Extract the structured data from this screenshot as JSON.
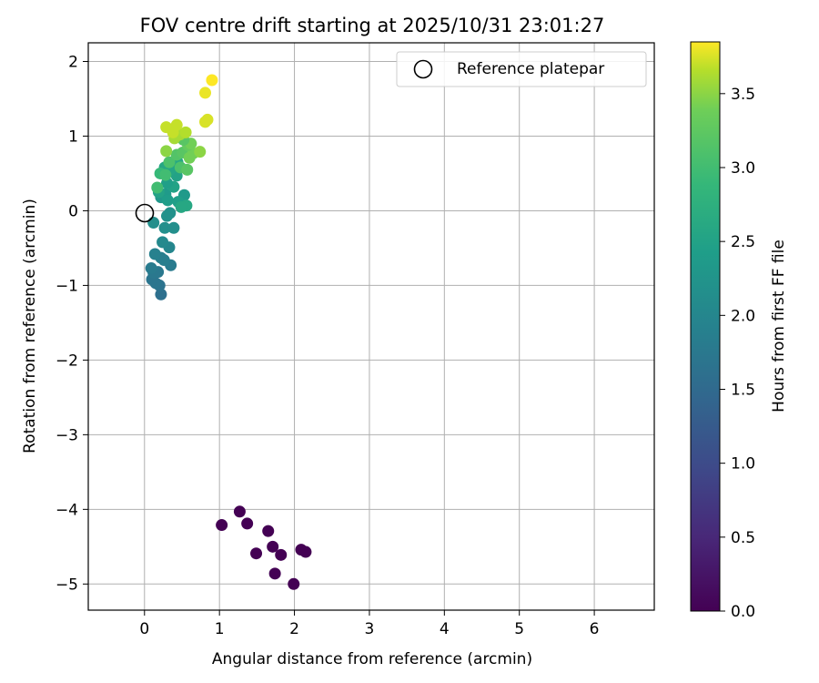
{
  "chart_data": {
    "type": "scatter",
    "title": "FOV centre drift starting at 2025/10/31 23:01:27",
    "xlabel": "Angular distance from reference (arcmin)",
    "ylabel": "Rotation from reference (arcmin)",
    "xlim": [
      -0.75,
      6.8
    ],
    "ylim": [
      -5.35,
      2.25
    ],
    "x_ticks": [
      0,
      1,
      2,
      3,
      4,
      5,
      6
    ],
    "y_ticks": [
      2,
      1,
      0,
      -1,
      -2,
      -3,
      -4,
      -5
    ],
    "grid": true,
    "legend": {
      "location": "top-right",
      "entries": [
        "Reference platepar"
      ]
    },
    "reference_point": {
      "x": 0,
      "y": 0
    },
    "colorbar": {
      "label": "Hours from first FF file",
      "range": [
        0,
        3.85
      ],
      "ticks": [
        0.0,
        0.5,
        1.0,
        1.5,
        2.0,
        2.5,
        3.0,
        3.5
      ],
      "colormap": "viridis"
    },
    "series": [
      {
        "color_by": "hours",
        "points": [
          {
            "x": 1.03,
            "y": -4.21,
            "h": 0.0
          },
          {
            "x": 1.27,
            "y": -4.03,
            "h": 0.0
          },
          {
            "x": 1.37,
            "y": -4.19,
            "h": 0.0
          },
          {
            "x": 1.49,
            "y": -4.59,
            "h": 0.0
          },
          {
            "x": 1.65,
            "y": -4.29,
            "h": 0.0
          },
          {
            "x": 1.71,
            "y": -4.5,
            "h": 0.0
          },
          {
            "x": 1.74,
            "y": -4.86,
            "h": 0.0
          },
          {
            "x": 1.82,
            "y": -4.61,
            "h": 0.0
          },
          {
            "x": 1.99,
            "y": -5.0,
            "h": 0.0
          },
          {
            "x": 2.09,
            "y": -4.54,
            "h": 0.0
          },
          {
            "x": 2.15,
            "y": -4.57,
            "h": 0.0
          },
          {
            "x": 0.22,
            "y": -1.12,
            "h": 1.6
          },
          {
            "x": 0.2,
            "y": -1.0,
            "h": 1.65
          },
          {
            "x": 0.15,
            "y": -0.97,
            "h": 1.7
          },
          {
            "x": 0.1,
            "y": -0.92,
            "h": 1.7
          },
          {
            "x": 0.12,
            "y": -0.83,
            "h": 1.75
          },
          {
            "x": 0.18,
            "y": -0.82,
            "h": 1.75
          },
          {
            "x": 0.09,
            "y": -0.77,
            "h": 1.8
          },
          {
            "x": 0.35,
            "y": -0.73,
            "h": 1.8
          },
          {
            "x": 0.26,
            "y": -0.66,
            "h": 1.85
          },
          {
            "x": 0.22,
            "y": -0.63,
            "h": 1.85
          },
          {
            "x": 0.14,
            "y": -0.58,
            "h": 1.9
          },
          {
            "x": 0.33,
            "y": -0.49,
            "h": 2.0
          },
          {
            "x": 0.24,
            "y": -0.42,
            "h": 2.05
          },
          {
            "x": 0.27,
            "y": -0.23,
            "h": 2.15
          },
          {
            "x": 0.39,
            "y": -0.23,
            "h": 2.15
          },
          {
            "x": 0.12,
            "y": -0.16,
            "h": 2.15
          },
          {
            "x": 0.3,
            "y": -0.07,
            "h": 2.2
          },
          {
            "x": 0.34,
            "y": -0.03,
            "h": 2.2
          },
          {
            "x": 0.22,
            "y": 0.18,
            "h": 2.3
          },
          {
            "x": 0.28,
            "y": 0.22,
            "h": 2.35
          },
          {
            "x": 0.53,
            "y": 0.21,
            "h": 2.35
          },
          {
            "x": 0.31,
            "y": 0.14,
            "h": 2.4
          },
          {
            "x": 0.45,
            "y": 0.12,
            "h": 2.45
          },
          {
            "x": 0.56,
            "y": 0.07,
            "h": 2.6
          },
          {
            "x": 0.49,
            "y": 0.05,
            "h": 2.6
          },
          {
            "x": 0.19,
            "y": 0.25,
            "h": 2.5
          },
          {
            "x": 0.39,
            "y": 0.32,
            "h": 2.5
          },
          {
            "x": 0.3,
            "y": 0.37,
            "h": 2.45
          },
          {
            "x": 0.43,
            "y": 0.47,
            "h": 2.5
          },
          {
            "x": 0.34,
            "y": 0.55,
            "h": 2.55
          },
          {
            "x": 0.27,
            "y": 0.58,
            "h": 2.6
          },
          {
            "x": 0.44,
            "y": 0.65,
            "h": 2.6
          },
          {
            "x": 0.17,
            "y": 0.31,
            "h": 3.0
          },
          {
            "x": 0.21,
            "y": 0.5,
            "h": 2.9
          },
          {
            "x": 0.28,
            "y": 0.48,
            "h": 3.0
          },
          {
            "x": 0.48,
            "y": 0.58,
            "h": 3.1
          },
          {
            "x": 0.57,
            "y": 0.55,
            "h": 3.2
          },
          {
            "x": 0.33,
            "y": 0.65,
            "h": 3.1
          },
          {
            "x": 0.43,
            "y": 0.75,
            "h": 3.15
          },
          {
            "x": 0.51,
            "y": 0.78,
            "h": 3.2
          },
          {
            "x": 0.29,
            "y": 0.8,
            "h": 3.5
          },
          {
            "x": 0.6,
            "y": 0.71,
            "h": 3.4
          },
          {
            "x": 0.65,
            "y": 0.77,
            "h": 3.4
          },
          {
            "x": 0.74,
            "y": 0.79,
            "h": 3.5
          },
          {
            "x": 0.58,
            "y": 0.88,
            "h": 3.3
          },
          {
            "x": 0.62,
            "y": 0.9,
            "h": 3.4
          },
          {
            "x": 0.52,
            "y": 0.95,
            "h": 3.2
          },
          {
            "x": 0.4,
            "y": 0.97,
            "h": 3.6
          },
          {
            "x": 0.47,
            "y": 1.02,
            "h": 3.6
          },
          {
            "x": 0.55,
            "y": 1.05,
            "h": 3.65
          },
          {
            "x": 0.38,
            "y": 1.05,
            "h": 3.7
          },
          {
            "x": 0.29,
            "y": 1.12,
            "h": 3.7
          },
          {
            "x": 0.43,
            "y": 1.15,
            "h": 3.7
          },
          {
            "x": 0.81,
            "y": 1.19,
            "h": 3.75
          },
          {
            "x": 0.84,
            "y": 1.22,
            "h": 3.75
          },
          {
            "x": 0.81,
            "y": 1.58,
            "h": 3.8
          },
          {
            "x": 0.9,
            "y": 1.75,
            "h": 3.85
          }
        ]
      }
    ]
  }
}
